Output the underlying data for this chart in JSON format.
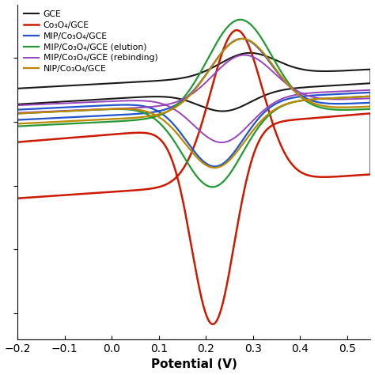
{
  "xlabel": "Potential (V)",
  "xlim": [
    -0.2,
    0.55
  ],
  "xticks": [
    -0.2,
    -0.1,
    0.0,
    0.1,
    0.2,
    0.3,
    0.4,
    0.5
  ],
  "legend_labels": [
    "GCE",
    "Co₃O₄/GCE",
    "MIP/Co₃O₄/GCE",
    "MIP/Co₃O₄/GCE (elution)",
    "MIP/Co₃O₄/GCE (rebinding)",
    "NIP/Co₃O₄/GCE"
  ],
  "colors": [
    "#1a1a1a",
    "#cc1a00",
    "#2255cc",
    "#229933",
    "#9944bb",
    "#bb8800"
  ],
  "linewidths": [
    1.5,
    1.8,
    1.6,
    1.6,
    1.4,
    1.6
  ],
  "background": "#ffffff",
  "figsize": [
    4.74,
    4.74
  ],
  "dpi": 100
}
